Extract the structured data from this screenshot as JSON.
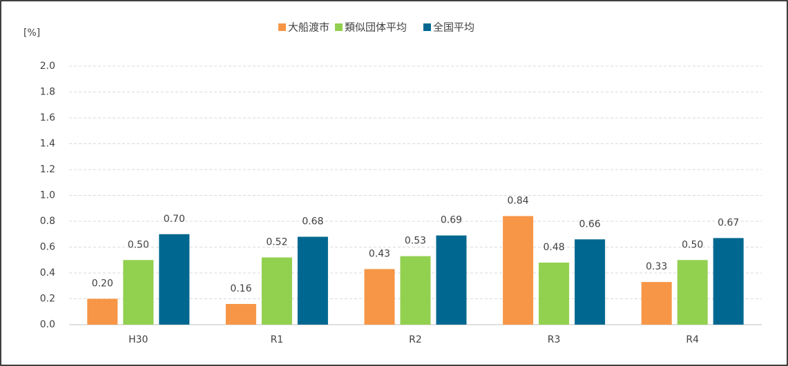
{
  "chart_data": {
    "type": "bar",
    "y_label": "[%]",
    "categories": [
      "H30",
      "R1",
      "R2",
      "R3",
      "R4"
    ],
    "series": [
      {
        "name": "大船渡市",
        "color": "#f79646",
        "values": [
          0.2,
          0.16,
          0.43,
          0.84,
          0.33
        ],
        "value_labels": [
          "0.20",
          "0.16",
          "0.43",
          "0.84",
          "0.33"
        ]
      },
      {
        "name": "類似団体平均",
        "color": "#92d050",
        "values": [
          0.5,
          0.52,
          0.53,
          0.48,
          0.5
        ],
        "value_labels": [
          "0.50",
          "0.52",
          "0.53",
          "0.48",
          "0.50"
        ]
      },
      {
        "name": "全国平均",
        "color": "#006890",
        "values": [
          0.7,
          0.68,
          0.69,
          0.66,
          0.67
        ],
        "value_labels": [
          "0.70",
          "0.68",
          "0.69",
          "0.66",
          "0.67"
        ]
      }
    ],
    "ylim": [
      0,
      2
    ],
    "yticks": [
      {
        "value": 0,
        "label": "0.0"
      },
      {
        "value": 0.2,
        "label": "0.2"
      },
      {
        "value": 0.4,
        "label": "0.4"
      },
      {
        "value": 0.6,
        "label": "0.6"
      },
      {
        "value": 0.8,
        "label": "0.8"
      },
      {
        "value": 1,
        "label": "1.0"
      },
      {
        "value": 1.2,
        "label": "1.2"
      },
      {
        "value": 1.4,
        "label": "1.4"
      },
      {
        "value": 1.6,
        "label": "1.6"
      },
      {
        "value": 1.8,
        "label": "1.8"
      },
      {
        "value": 2,
        "label": "2.0"
      }
    ],
    "grid": true,
    "legend": "top"
  }
}
